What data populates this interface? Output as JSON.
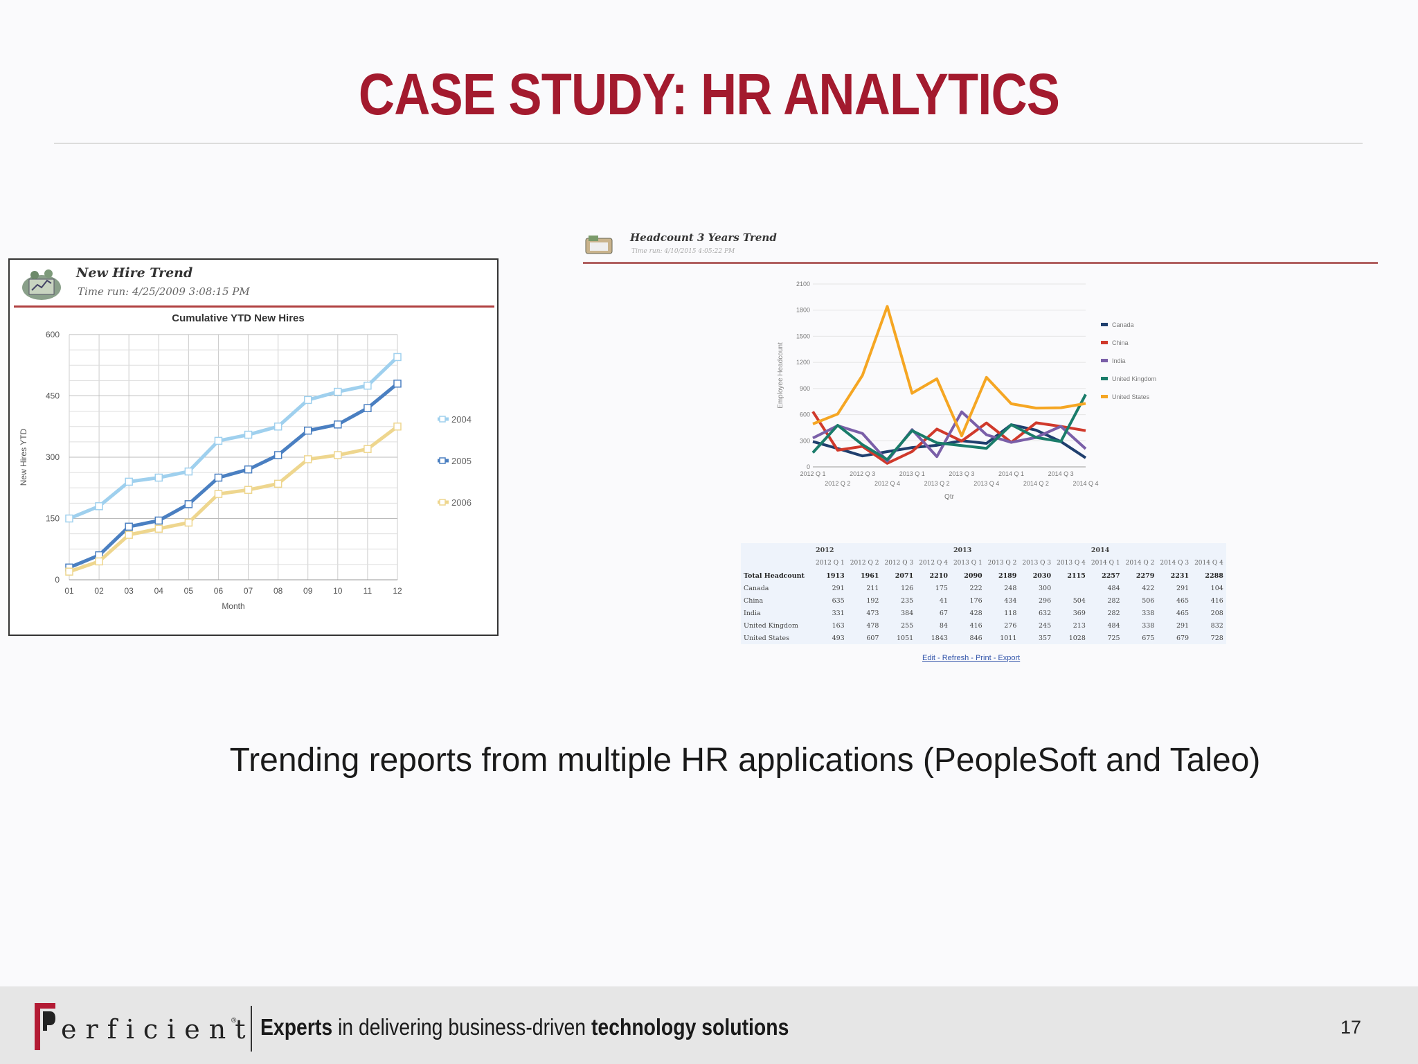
{
  "slide": {
    "title": "CASE STUDY: HR ANALYTICS",
    "caption": "Trending reports from multiple HR applications (PeopleSoft and Taleo)",
    "page_number": "17"
  },
  "footer": {
    "logo_text": "erficient",
    "logo_reg": "®",
    "tagline_bold1": "Experts",
    "tagline_mid": " in delivering business-driven ",
    "tagline_bold2": "technology solutions"
  },
  "colors": {
    "title": "#a31a2e",
    "accent": "#b04040"
  },
  "left_report": {
    "header_title": "New Hire Trend",
    "time_run": "Time run: 4/25/2009 3:08:15 PM"
  },
  "right_report": {
    "header_title": "Headcount 3 Years Trend",
    "time_run": "Time run: 4/10/2015 4:05:22 PM",
    "table": {
      "year_labels": [
        "2012",
        "2013",
        "2014"
      ],
      "quarters": [
        "2012 Q 1",
        "2012 Q 2",
        "2012 Q 3",
        "2012 Q 4",
        "2013 Q 1",
        "2013 Q 2",
        "2013 Q 3",
        "2013 Q 4",
        "2014 Q 1",
        "2014 Q 2",
        "2014 Q 3",
        "2014 Q 4"
      ],
      "rows": [
        {
          "label": "Total Headcount",
          "values": [
            "1913",
            "1961",
            "2071",
            "2210",
            "2090",
            "2189",
            "2030",
            "2115",
            "2257",
            "2279",
            "2231",
            "2288"
          ]
        },
        {
          "label": "Canada",
          "values": [
            "291",
            "211",
            "126",
            "175",
            "222",
            "248",
            "300",
            "",
            "484",
            "422",
            "291",
            "104"
          ]
        },
        {
          "label": "China",
          "values": [
            "635",
            "192",
            "235",
            "41",
            "176",
            "434",
            "296",
            "504",
            "282",
            "506",
            "465",
            "416"
          ]
        },
        {
          "label": "India",
          "values": [
            "331",
            "473",
            "384",
            "67",
            "428",
            "118",
            "632",
            "369",
            "282",
            "338",
            "465",
            "208"
          ]
        },
        {
          "label": "United Kingdom",
          "values": [
            "163",
            "478",
            "255",
            "84",
            "416",
            "276",
            "245",
            "213",
            "484",
            "338",
            "291",
            "832"
          ]
        },
        {
          "label": "United States",
          "values": [
            "493",
            "607",
            "1051",
            "1843",
            "846",
            "1011",
            "357",
            "1028",
            "725",
            "675",
            "679",
            "728"
          ]
        }
      ],
      "links": "Edit - Refresh - Print - Export"
    }
  },
  "chart_data": [
    {
      "type": "line",
      "title": "Cumulative YTD New Hires",
      "xlabel": "Month",
      "ylabel": "New Hires YTD",
      "x": [
        "01",
        "02",
        "03",
        "04",
        "05",
        "06",
        "07",
        "08",
        "09",
        "10",
        "11",
        "12"
      ],
      "ylim": [
        0,
        600
      ],
      "yticks": [
        0,
        150,
        300,
        450,
        600
      ],
      "grid": true,
      "legend": "right",
      "series": [
        {
          "name": "2004",
          "color": "#9fd0ee",
          "values": [
            150,
            180,
            240,
            250,
            265,
            340,
            355,
            375,
            440,
            460,
            475,
            545
          ]
        },
        {
          "name": "2005",
          "color": "#4a7fc1",
          "values": [
            30,
            60,
            130,
            145,
            185,
            250,
            270,
            305,
            365,
            380,
            420,
            480
          ]
        },
        {
          "name": "2006",
          "color": "#eed68e",
          "values": [
            20,
            45,
            110,
            125,
            140,
            210,
            220,
            235,
            295,
            305,
            320,
            375
          ]
        }
      ]
    },
    {
      "type": "line",
      "xlabel": "Qtr",
      "ylabel": "Employee Headcount",
      "x": [
        "2012 Q 1",
        "2012 Q 2",
        "2012 Q 3",
        "2012 Q 4",
        "2013 Q 1",
        "2013 Q 2",
        "2013 Q 3",
        "2013 Q 4",
        "2014 Q 1",
        "2014 Q 2",
        "2014 Q 3",
        "2014 Q 4"
      ],
      "ylim": [
        0,
        2100
      ],
      "yticks": [
        0,
        300,
        600,
        900,
        1200,
        1500,
        1800,
        2100
      ],
      "grid": true,
      "legend": "right",
      "series": [
        {
          "name": "Canada",
          "color": "#1f3f6e",
          "values": [
            291,
            211,
            126,
            175,
            222,
            248,
            300,
            270,
            484,
            422,
            291,
            104
          ]
        },
        {
          "name": "China",
          "color": "#d0392b",
          "values": [
            635,
            192,
            235,
            41,
            176,
            434,
            296,
            504,
            282,
            506,
            465,
            416
          ]
        },
        {
          "name": "India",
          "color": "#7a5fa8",
          "values": [
            331,
            473,
            384,
            67,
            428,
            118,
            632,
            369,
            282,
            338,
            465,
            208
          ]
        },
        {
          "name": "United Kingdom",
          "color": "#1a7c6a",
          "values": [
            163,
            478,
            255,
            84,
            416,
            276,
            245,
            213,
            484,
            338,
            291,
            832
          ]
        },
        {
          "name": "United States",
          "color": "#f5a623",
          "values": [
            493,
            607,
            1051,
            1843,
            846,
            1011,
            357,
            1028,
            725,
            675,
            679,
            728
          ]
        }
      ]
    }
  ]
}
